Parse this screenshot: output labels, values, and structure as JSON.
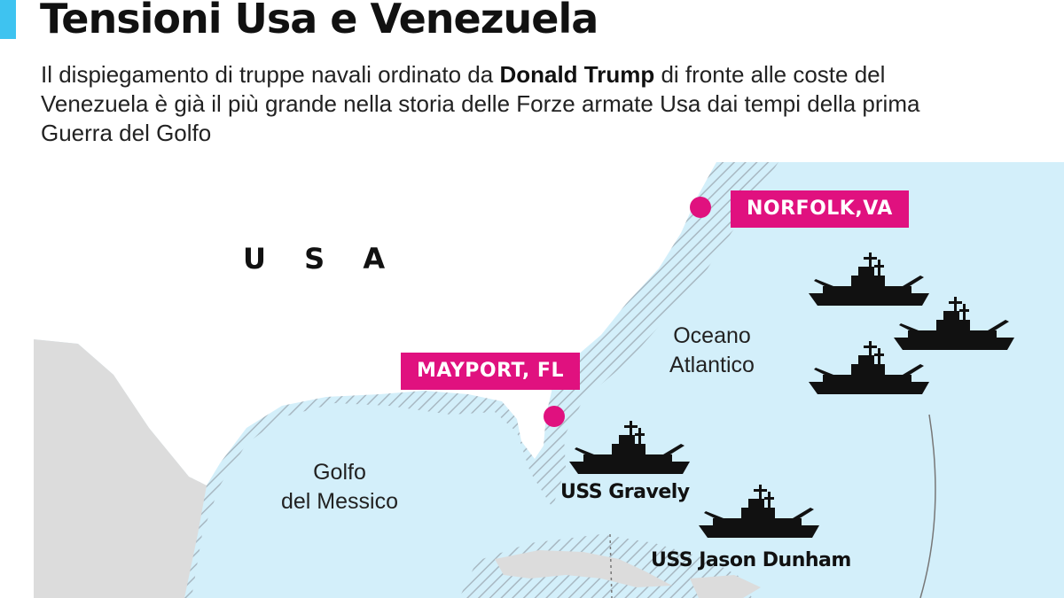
{
  "header": {
    "title": "Tensioni Usa e Venezuela",
    "subtitle_pre": "Il dispiegamento di truppe navali ordinato da ",
    "subtitle_bold": "Donald Trump",
    "subtitle_post": " di fronte alle coste del Venezuela è già il più grande nella storia delle Forze armate Usa dai tempi della prima Guerra del Golfo"
  },
  "map": {
    "country_label": "U S A",
    "ports": [
      {
        "name": "NORFOLK,VA"
      },
      {
        "name": "MAYPORT, FL"
      }
    ],
    "waters": {
      "atlantic_line1": "Oceano",
      "atlantic_line2": "Atlantico",
      "gulf_line1": "Golfo",
      "gulf_line2": "del Messico"
    },
    "ships": [
      {
        "label": ""
      },
      {
        "label": ""
      },
      {
        "label": ""
      },
      {
        "label": "USS Gravely"
      },
      {
        "label": "USS Jason Dunham"
      }
    ],
    "colors": {
      "sea": "#d3effa",
      "land_usa": "#ffffff",
      "land_mexico": "#dcdcdc",
      "hatch": "#a8b8c2",
      "accent": "#e0117f",
      "title_bar": "#3ec3f0",
      "ship": "#111111"
    }
  }
}
